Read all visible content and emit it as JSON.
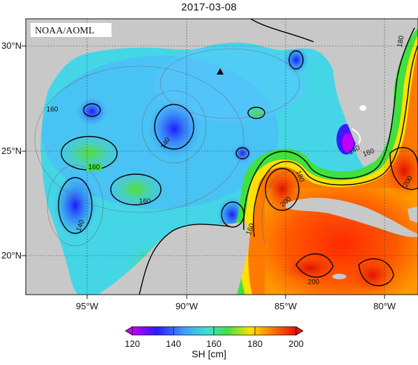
{
  "title": "2017-03-08",
  "watermark": "NOAA/AOML",
  "map": {
    "lat_ticks": [
      "30°N",
      "25°N",
      "20°N"
    ],
    "lon_ticks": [
      "95°W",
      "90°W",
      "85°W",
      "80°W"
    ],
    "contour_labels": [
      "160",
      "140",
      "160",
      "160",
      "140",
      "180",
      "200",
      "160",
      "200",
      "180",
      "200",
      "140",
      "160"
    ]
  },
  "colorbar": {
    "ticks": [
      "120",
      "140",
      "160",
      "180",
      "200"
    ],
    "label": "SH [cm]"
  }
}
